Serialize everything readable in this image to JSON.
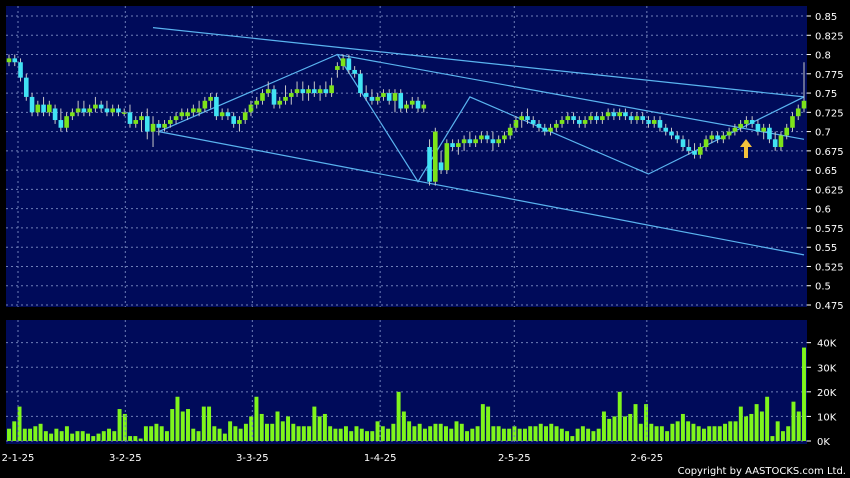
{
  "copyright": "Copyright by AASTOCKS.com Ltd.",
  "colors": {
    "panel_bg": "#000b5a",
    "grid": "#6f7fb8",
    "candle_up": "#7de31a",
    "candle_down": "#41e3f4",
    "volume": "#7ff51c",
    "trendline": "#5ab4f0",
    "arrow": "#f4c23c"
  },
  "chart_data": [
    {
      "type": "candlestick",
      "title": "",
      "ylim": [
        0.475,
        0.85
      ],
      "y_ticks": [
        "0.85",
        "0.825",
        "0.8",
        "0.775",
        "0.75",
        "0.725",
        "0.7",
        "0.675",
        "0.65",
        "0.625",
        "0.6",
        "0.575",
        "0.55",
        "0.525",
        "0.5",
        "0.475"
      ],
      "x_ticks": [
        "2-1-25",
        "3-2-25",
        "3-3-25",
        "1-4-25",
        "2-5-25",
        "2-6-25"
      ],
      "grid": true,
      "ohlc": [
        [
          0.79,
          0.8,
          0.785,
          0.795
        ],
        [
          0.795,
          0.8,
          0.785,
          0.79
        ],
        [
          0.79,
          0.795,
          0.765,
          0.77
        ],
        [
          0.77,
          0.775,
          0.74,
          0.745
        ],
        [
          0.745,
          0.75,
          0.72,
          0.725
        ],
        [
          0.725,
          0.74,
          0.72,
          0.735
        ],
        [
          0.735,
          0.745,
          0.72,
          0.725
        ],
        [
          0.725,
          0.74,
          0.72,
          0.735
        ],
        [
          0.73,
          0.735,
          0.71,
          0.715
        ],
        [
          0.715,
          0.73,
          0.7,
          0.705
        ],
        [
          0.705,
          0.725,
          0.7,
          0.72
        ],
        [
          0.72,
          0.73,
          0.715,
          0.725
        ],
        [
          0.725,
          0.74,
          0.72,
          0.73
        ],
        [
          0.73,
          0.74,
          0.72,
          0.725
        ],
        [
          0.725,
          0.735,
          0.72,
          0.73
        ],
        [
          0.73,
          0.745,
          0.725,
          0.735
        ],
        [
          0.735,
          0.74,
          0.725,
          0.73
        ],
        [
          0.73,
          0.74,
          0.72,
          0.725
        ],
        [
          0.725,
          0.735,
          0.72,
          0.73
        ],
        [
          0.73,
          0.735,
          0.72,
          0.725
        ],
        [
          0.725,
          0.73,
          0.72,
          0.725
        ],
        [
          0.725,
          0.735,
          0.705,
          0.71
        ],
        [
          0.71,
          0.72,
          0.705,
          0.715
        ],
        [
          0.715,
          0.725,
          0.7,
          0.72
        ],
        [
          0.72,
          0.73,
          0.69,
          0.7
        ],
        [
          0.7,
          0.72,
          0.68,
          0.71
        ],
        [
          0.71,
          0.715,
          0.695,
          0.705
        ],
        [
          0.705,
          0.715,
          0.7,
          0.71
        ],
        [
          0.71,
          0.72,
          0.705,
          0.715
        ],
        [
          0.715,
          0.725,
          0.71,
          0.72
        ],
        [
          0.72,
          0.73,
          0.715,
          0.725
        ],
        [
          0.72,
          0.73,
          0.715,
          0.725
        ],
        [
          0.725,
          0.735,
          0.72,
          0.73
        ],
        [
          0.725,
          0.74,
          0.72,
          0.73
        ],
        [
          0.73,
          0.745,
          0.725,
          0.74
        ],
        [
          0.74,
          0.75,
          0.73,
          0.745
        ],
        [
          0.745,
          0.75,
          0.715,
          0.72
        ],
        [
          0.72,
          0.73,
          0.715,
          0.725
        ],
        [
          0.725,
          0.73,
          0.715,
          0.72
        ],
        [
          0.72,
          0.725,
          0.705,
          0.71
        ],
        [
          0.71,
          0.72,
          0.7,
          0.715
        ],
        [
          0.715,
          0.73,
          0.71,
          0.725
        ],
        [
          0.725,
          0.74,
          0.72,
          0.735
        ],
        [
          0.735,
          0.745,
          0.73,
          0.74
        ],
        [
          0.74,
          0.755,
          0.735,
          0.75
        ],
        [
          0.75,
          0.765,
          0.745,
          0.755
        ],
        [
          0.755,
          0.76,
          0.73,
          0.735
        ],
        [
          0.735,
          0.745,
          0.73,
          0.74
        ],
        [
          0.74,
          0.76,
          0.735,
          0.745
        ],
        [
          0.745,
          0.755,
          0.735,
          0.75
        ],
        [
          0.75,
          0.765,
          0.745,
          0.755
        ],
        [
          0.755,
          0.765,
          0.74,
          0.75
        ],
        [
          0.75,
          0.76,
          0.74,
          0.755
        ],
        [
          0.755,
          0.765,
          0.745,
          0.75
        ],
        [
          0.75,
          0.76,
          0.74,
          0.755
        ],
        [
          0.755,
          0.765,
          0.745,
          0.75
        ],
        [
          0.75,
          0.77,
          0.745,
          0.76
        ],
        [
          0.78,
          0.79,
          0.77,
          0.785
        ],
        [
          0.785,
          0.8,
          0.78,
          0.795
        ],
        [
          0.795,
          0.8,
          0.775,
          0.78
        ],
        [
          0.78,
          0.785,
          0.77,
          0.775
        ],
        [
          0.775,
          0.78,
          0.745,
          0.75
        ],
        [
          0.75,
          0.76,
          0.74,
          0.745
        ],
        [
          0.745,
          0.755,
          0.735,
          0.74
        ],
        [
          0.74,
          0.75,
          0.735,
          0.745
        ],
        [
          0.745,
          0.755,
          0.74,
          0.75
        ],
        [
          0.75,
          0.755,
          0.735,
          0.74
        ],
        [
          0.74,
          0.755,
          0.725,
          0.75
        ],
        [
          0.75,
          0.755,
          0.725,
          0.73
        ],
        [
          0.73,
          0.74,
          0.725,
          0.735
        ],
        [
          0.735,
          0.745,
          0.73,
          0.74
        ],
        [
          0.74,
          0.745,
          0.725,
          0.73
        ],
        [
          0.73,
          0.74,
          0.725,
          0.735
        ],
        [
          0.68,
          0.69,
          0.63,
          0.635
        ],
        [
          0.635,
          0.705,
          0.63,
          0.7
        ],
        [
          0.66,
          0.675,
          0.645,
          0.65
        ],
        [
          0.65,
          0.69,
          0.645,
          0.685
        ],
        [
          0.685,
          0.69,
          0.675,
          0.68
        ],
        [
          0.68,
          0.69,
          0.67,
          0.685
        ],
        [
          0.685,
          0.695,
          0.675,
          0.69
        ],
        [
          0.69,
          0.7,
          0.68,
          0.685
        ],
        [
          0.685,
          0.695,
          0.68,
          0.69
        ],
        [
          0.69,
          0.7,
          0.685,
          0.695
        ],
        [
          0.695,
          0.7,
          0.685,
          0.69
        ],
        [
          0.69,
          0.7,
          0.675,
          0.685
        ],
        [
          0.685,
          0.695,
          0.68,
          0.69
        ],
        [
          0.69,
          0.7,
          0.685,
          0.695
        ],
        [
          0.695,
          0.71,
          0.69,
          0.705
        ],
        [
          0.705,
          0.72,
          0.7,
          0.715
        ],
        [
          0.715,
          0.725,
          0.705,
          0.72
        ],
        [
          0.72,
          0.73,
          0.71,
          0.715
        ],
        [
          0.715,
          0.72,
          0.705,
          0.71
        ],
        [
          0.71,
          0.715,
          0.7,
          0.705
        ],
        [
          0.705,
          0.71,
          0.695,
          0.7
        ],
        [
          0.7,
          0.71,
          0.695,
          0.705
        ],
        [
          0.705,
          0.715,
          0.7,
          0.71
        ],
        [
          0.71,
          0.72,
          0.705,
          0.715
        ],
        [
          0.715,
          0.725,
          0.71,
          0.72
        ],
        [
          0.72,
          0.725,
          0.71,
          0.715
        ],
        [
          0.715,
          0.72,
          0.705,
          0.71
        ],
        [
          0.71,
          0.72,
          0.705,
          0.715
        ],
        [
          0.715,
          0.725,
          0.71,
          0.72
        ],
        [
          0.72,
          0.725,
          0.71,
          0.715
        ],
        [
          0.715,
          0.725,
          0.71,
          0.72
        ],
        [
          0.72,
          0.73,
          0.715,
          0.725
        ],
        [
          0.725,
          0.73,
          0.715,
          0.72
        ],
        [
          0.72,
          0.73,
          0.715,
          0.725
        ],
        [
          0.725,
          0.73,
          0.715,
          0.72
        ],
        [
          0.72,
          0.725,
          0.71,
          0.715
        ],
        [
          0.715,
          0.725,
          0.71,
          0.72
        ],
        [
          0.72,
          0.725,
          0.71,
          0.715
        ],
        [
          0.715,
          0.72,
          0.705,
          0.71
        ],
        [
          0.71,
          0.72,
          0.705,
          0.715
        ],
        [
          0.715,
          0.72,
          0.7,
          0.705
        ],
        [
          0.705,
          0.71,
          0.695,
          0.7
        ],
        [
          0.7,
          0.705,
          0.69,
          0.695
        ],
        [
          0.695,
          0.7,
          0.685,
          0.69
        ],
        [
          0.69,
          0.695,
          0.675,
          0.68
        ],
        [
          0.68,
          0.69,
          0.67,
          0.675
        ],
        [
          0.675,
          0.685,
          0.665,
          0.67
        ],
        [
          0.67,
          0.685,
          0.665,
          0.68
        ],
        [
          0.68,
          0.695,
          0.675,
          0.69
        ],
        [
          0.69,
          0.7,
          0.685,
          0.695
        ],
        [
          0.695,
          0.7,
          0.685,
          0.69
        ],
        [
          0.69,
          0.7,
          0.685,
          0.695
        ],
        [
          0.695,
          0.705,
          0.69,
          0.7
        ],
        [
          0.7,
          0.71,
          0.695,
          0.705
        ],
        [
          0.705,
          0.715,
          0.7,
          0.71
        ],
        [
          0.71,
          0.72,
          0.705,
          0.715
        ],
        [
          0.715,
          0.72,
          0.705,
          0.71
        ],
        [
          0.71,
          0.715,
          0.695,
          0.7
        ],
        [
          0.7,
          0.71,
          0.69,
          0.705
        ],
        [
          0.705,
          0.71,
          0.685,
          0.69
        ],
        [
          0.69,
          0.7,
          0.675,
          0.68
        ],
        [
          0.68,
          0.7,
          0.675,
          0.695
        ],
        [
          0.695,
          0.71,
          0.69,
          0.705
        ],
        [
          0.705,
          0.725,
          0.7,
          0.72
        ],
        [
          0.72,
          0.735,
          0.715,
          0.73
        ],
        [
          0.73,
          0.79,
          0.725,
          0.74
        ]
      ]
    },
    {
      "type": "bar",
      "title": "",
      "ylim": [
        0,
        48000
      ],
      "y_ticks": [
        "40K",
        "30K",
        "20K",
        "10K",
        "0K"
      ],
      "grid": true,
      "values": [
        5000,
        8000,
        14000,
        5000,
        5000,
        6000,
        7000,
        4000,
        3000,
        5000,
        4000,
        6000,
        3000,
        4000,
        4000,
        3000,
        2000,
        3000,
        4000,
        5000,
        4000,
        13000,
        11000,
        2000,
        2000,
        1000,
        6000,
        6000,
        7000,
        6000,
        4000,
        13000,
        18000,
        12000,
        13000,
        5000,
        4000,
        14000,
        14000,
        6000,
        5000,
        3000,
        8000,
        6000,
        5000,
        7000,
        10000,
        18000,
        11000,
        7000,
        7000,
        12000,
        8000,
        10000,
        7000,
        6000,
        6000,
        6000,
        14000,
        10000,
        11000,
        6000,
        5000,
        5000,
        6000,
        4000,
        6000,
        5000,
        4000,
        4000,
        8000,
        6000,
        5000,
        7000,
        20000,
        12000,
        8000,
        6000,
        7000,
        5000,
        6000,
        7000,
        7000,
        6000,
        5000,
        8000,
        7000,
        4000,
        5000,
        6000,
        15000,
        14000,
        6000,
        6000,
        5000,
        5000,
        6000,
        5000,
        5000,
        6000,
        6000,
        7000,
        6000,
        7000,
        6000,
        5000,
        4000,
        2000,
        5000,
        6000,
        5000,
        4000,
        5000,
        12000,
        9000,
        10000,
        20000,
        10000,
        11000,
        15000,
        7000,
        15000,
        7000,
        6000,
        6000,
        4000,
        7000,
        8000,
        11000,
        8000,
        7000,
        6000,
        5000,
        6000,
        6000,
        6000,
        7000,
        8000,
        8000,
        14000,
        10000,
        11000,
        15000,
        12000,
        18000,
        2000,
        8000,
        4000,
        6000,
        16000,
        12000,
        38000
      ]
    }
  ]
}
